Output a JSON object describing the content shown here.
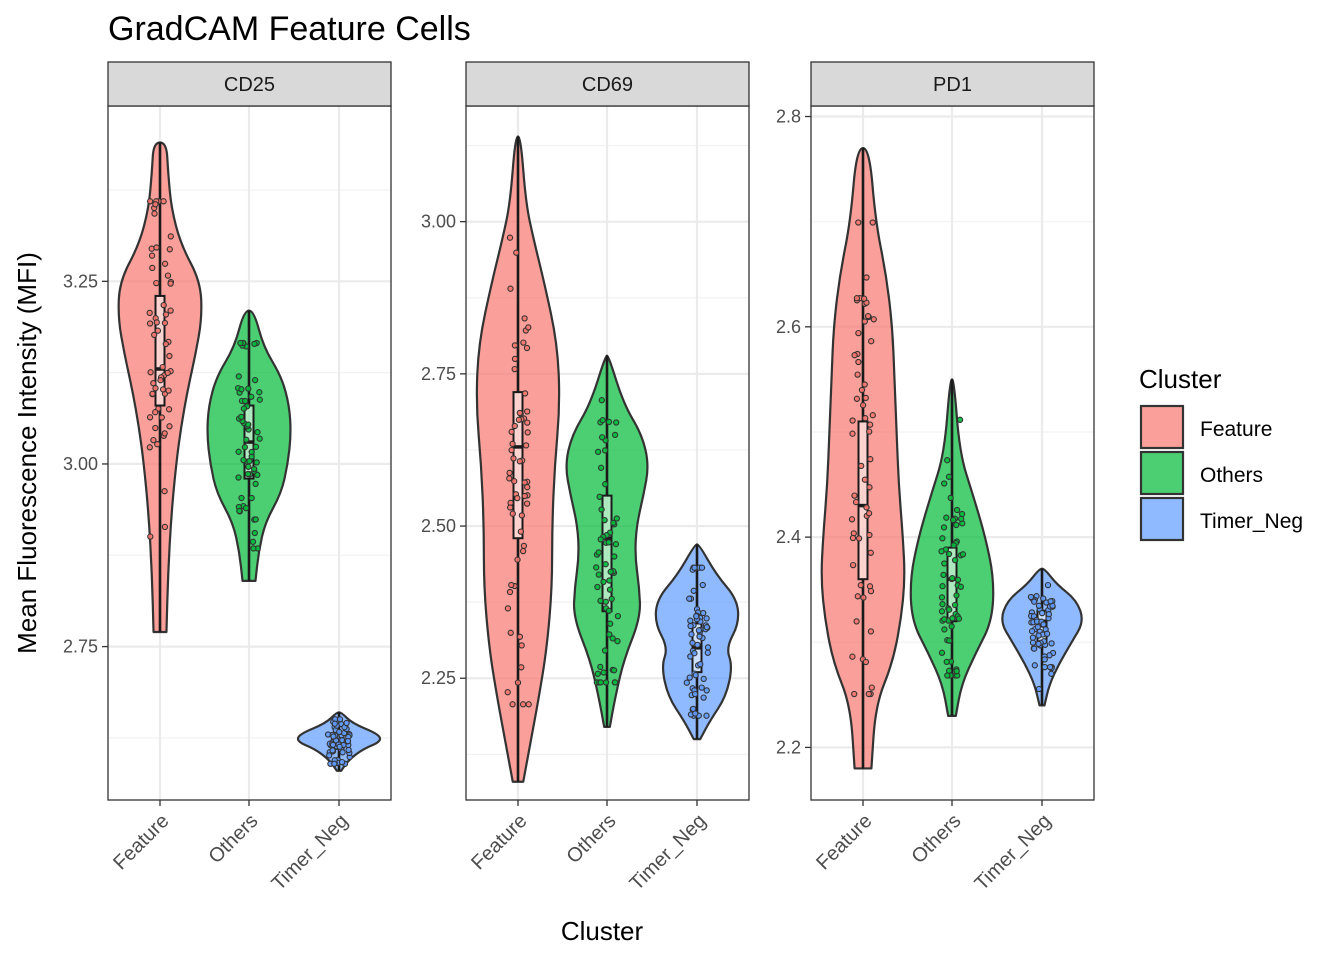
{
  "chart_data": {
    "type": "violin",
    "title": "GradCAM Feature Cells",
    "xlabel": "Cluster",
    "ylabel": "Mean Fluorescence Intensity (MFI)",
    "categories": [
      "Feature",
      "Others",
      "Timer_Neg"
    ],
    "legend": {
      "title": "Cluster",
      "position": "right",
      "entries": [
        {
          "name": "Feature",
          "color": "#F8766D"
        },
        {
          "name": "Others",
          "color": "#00BA38"
        },
        {
          "name": "Timer_Neg",
          "color": "#619CFF"
        }
      ]
    },
    "grid": true,
    "panels": [
      {
        "name": "CD25",
        "ylim": [
          2.54,
          3.49
        ],
        "yticks": [
          2.75,
          3.0,
          3.25
        ],
        "ytick_labels": [
          "2.75",
          "3.00",
          "3.25"
        ],
        "series": [
          {
            "name": "Feature",
            "min": 2.77,
            "max": 3.44,
            "q1": 3.08,
            "median": 3.13,
            "q3": 3.23,
            "density": [
              [
                2.77,
                0.04
              ],
              [
                2.85,
                0.05
              ],
              [
                2.93,
                0.07
              ],
              [
                3.0,
                0.1
              ],
              [
                3.05,
                0.13
              ],
              [
                3.1,
                0.17
              ],
              [
                3.15,
                0.22
              ],
              [
                3.2,
                0.26
              ],
              [
                3.25,
                0.25
              ],
              [
                3.3,
                0.13
              ],
              [
                3.35,
                0.07
              ],
              [
                3.4,
                0.05
              ],
              [
                3.44,
                0.04
              ]
            ]
          },
          {
            "name": "Others",
            "min": 2.84,
            "max": 3.21,
            "q1": 2.98,
            "median": 3.03,
            "q3": 3.08,
            "density": [
              [
                2.84,
                0.04
              ],
              [
                2.88,
                0.06
              ],
              [
                2.92,
                0.1
              ],
              [
                2.96,
                0.2
              ],
              [
                3.0,
                0.24
              ],
              [
                3.04,
                0.26
              ],
              [
                3.08,
                0.25
              ],
              [
                3.12,
                0.2
              ],
              [
                3.16,
                0.09
              ],
              [
                3.21,
                0.03
              ]
            ]
          },
          {
            "name": "Timer_Neg",
            "min": 2.58,
            "max": 2.66,
            "q1": 2.61,
            "median": 2.62,
            "q3": 2.63,
            "density": [
              [
                2.58,
                0.05
              ],
              [
                2.595,
                0.22
              ],
              [
                2.61,
                0.55
              ],
              [
                2.62,
                0.95
              ],
              [
                2.63,
                0.9
              ],
              [
                2.645,
                0.3
              ],
              [
                2.66,
                0.05
              ]
            ]
          }
        ]
      },
      {
        "name": "CD69",
        "ylim": [
          2.05,
          3.19
        ],
        "yticks": [
          2.25,
          2.5,
          2.75,
          3.0
        ],
        "ytick_labels": [
          "2.25",
          "2.50",
          "2.75",
          "3.00"
        ],
        "series": [
          {
            "name": "Feature",
            "min": 2.08,
            "max": 3.14,
            "q1": 2.48,
            "median": 2.63,
            "q3": 2.72,
            "density": [
              [
                2.08,
                0.02
              ],
              [
                2.15,
                0.05
              ],
              [
                2.22,
                0.08
              ],
              [
                2.3,
                0.11
              ],
              [
                2.4,
                0.13
              ],
              [
                2.5,
                0.13
              ],
              [
                2.6,
                0.14
              ],
              [
                2.7,
                0.16
              ],
              [
                2.8,
                0.15
              ],
              [
                2.9,
                0.1
              ],
              [
                2.97,
                0.06
              ],
              [
                3.03,
                0.03
              ],
              [
                3.14,
                0.01
              ]
            ]
          },
          {
            "name": "Others",
            "min": 2.17,
            "max": 2.78,
            "q1": 2.36,
            "median": 2.48,
            "q3": 2.55,
            "density": [
              [
                2.17,
                0.02
              ],
              [
                2.22,
                0.06
              ],
              [
                2.28,
                0.12
              ],
              [
                2.35,
                0.24
              ],
              [
                2.4,
                0.23
              ],
              [
                2.45,
                0.2
              ],
              [
                2.5,
                0.21
              ],
              [
                2.55,
                0.26
              ],
              [
                2.6,
                0.3
              ],
              [
                2.65,
                0.25
              ],
              [
                2.7,
                0.12
              ],
              [
                2.78,
                0.01
              ]
            ]
          },
          {
            "name": "Timer_Neg",
            "min": 2.15,
            "max": 2.47,
            "q1": 2.26,
            "median": 2.3,
            "q3": 2.34,
            "density": [
              [
                2.15,
                0.05
              ],
              [
                2.18,
                0.2
              ],
              [
                2.22,
                0.45
              ],
              [
                2.27,
                0.55
              ],
              [
                2.3,
                0.45
              ],
              [
                2.34,
                0.65
              ],
              [
                2.38,
                0.62
              ],
              [
                2.42,
                0.3
              ],
              [
                2.47,
                0.03
              ]
            ]
          }
        ]
      },
      {
        "name": "PD1",
        "ylim": [
          2.15,
          2.81
        ],
        "yticks": [
          2.2,
          2.4,
          2.6,
          2.8
        ],
        "ytick_labels": [
          "2.2",
          "2.4",
          "2.6",
          "2.8"
        ],
        "series": [
          {
            "name": "Feature",
            "min": 2.18,
            "max": 2.77,
            "q1": 2.36,
            "median": 2.43,
            "q3": 2.51,
            "density": [
              [
                2.18,
                0.04
              ],
              [
                2.24,
                0.06
              ],
              [
                2.28,
                0.14
              ],
              [
                2.32,
                0.18
              ],
              [
                2.36,
                0.2
              ],
              [
                2.4,
                0.19
              ],
              [
                2.45,
                0.17
              ],
              [
                2.5,
                0.16
              ],
              [
                2.55,
                0.15
              ],
              [
                2.6,
                0.14
              ],
              [
                2.65,
                0.11
              ],
              [
                2.7,
                0.06
              ],
              [
                2.77,
                0.03
              ]
            ]
          },
          {
            "name": "Others",
            "min": 2.23,
            "max": 2.55,
            "q1": 2.32,
            "median": 2.36,
            "q3": 2.39,
            "density": [
              [
                2.23,
                0.04
              ],
              [
                2.26,
                0.1
              ],
              [
                2.29,
                0.25
              ],
              [
                2.32,
                0.42
              ],
              [
                2.36,
                0.44
              ],
              [
                2.4,
                0.35
              ],
              [
                2.44,
                0.22
              ],
              [
                2.48,
                0.08
              ],
              [
                2.55,
                0.02
              ]
            ]
          },
          {
            "name": "Timer_Neg",
            "min": 2.24,
            "max": 2.37,
            "q1": 2.3,
            "median": 2.32,
            "q3": 2.33,
            "density": [
              [
                2.24,
                0.05
              ],
              [
                2.26,
                0.15
              ],
              [
                2.28,
                0.35
              ],
              [
                2.3,
                0.6
              ],
              [
                2.32,
                0.85
              ],
              [
                2.34,
                0.7
              ],
              [
                2.355,
                0.3
              ],
              [
                2.37,
                0.05
              ]
            ]
          }
        ]
      }
    ]
  }
}
